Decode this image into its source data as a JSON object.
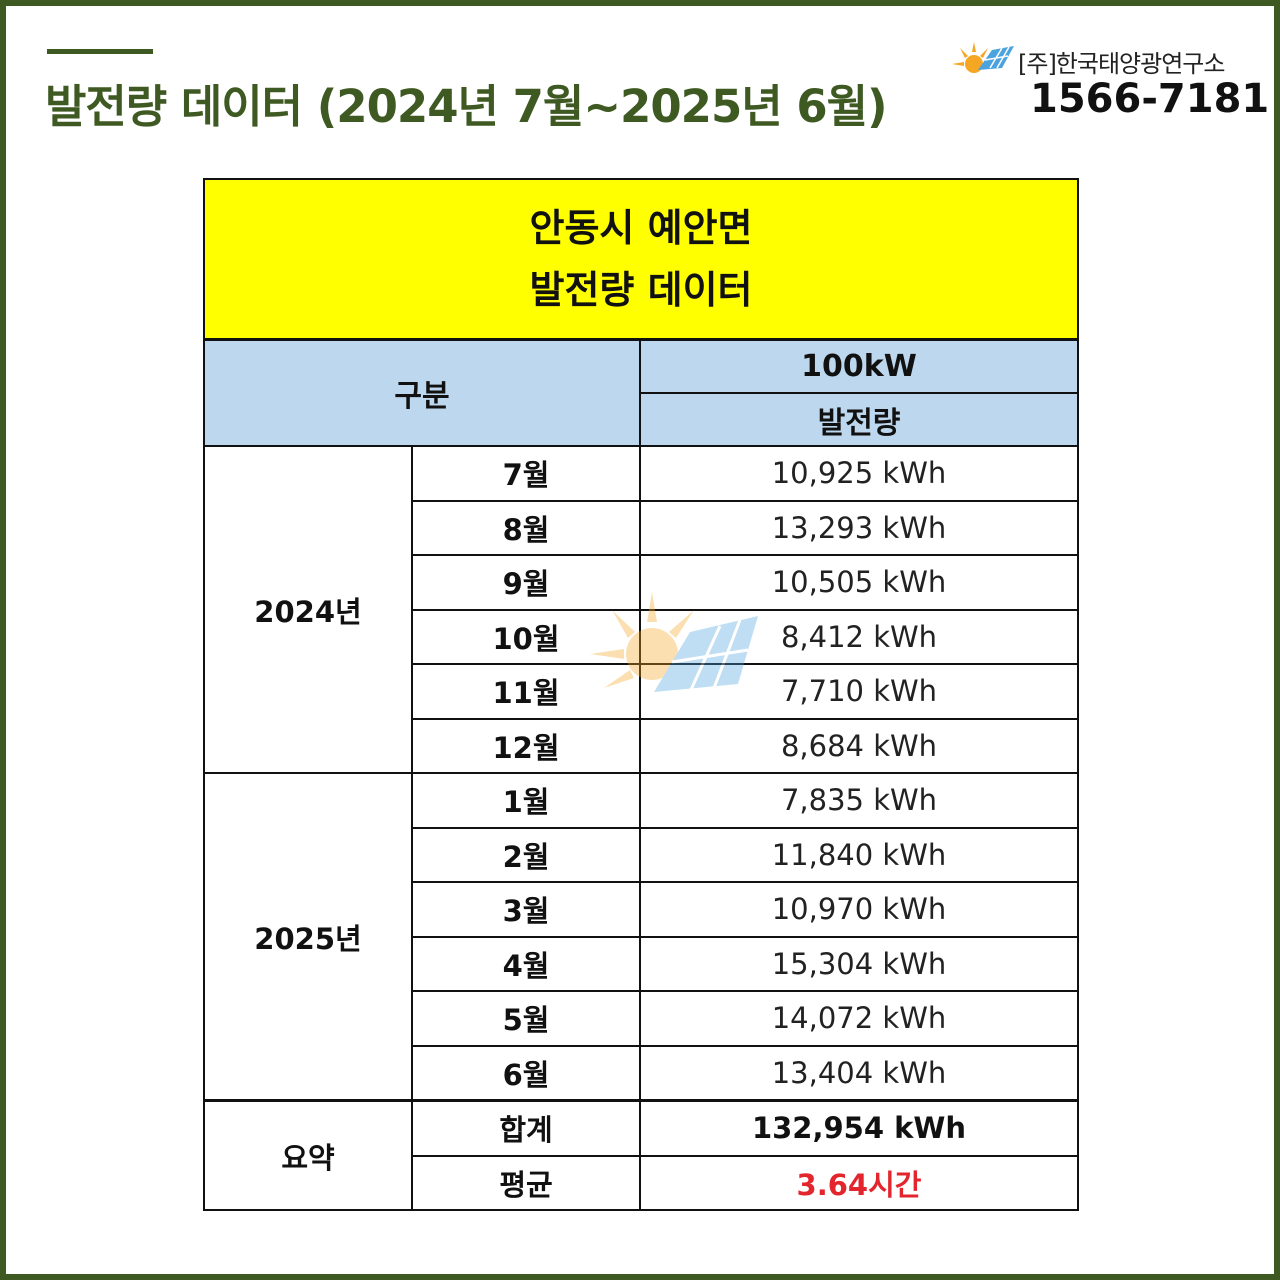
{
  "header": {
    "title": "발전량 데이터 (2024년 7월~2025년 6월)",
    "company": "[주]한국태양광연구소",
    "phone": "1566-7181"
  },
  "table": {
    "title_line1": "안동시 예안면",
    "title_line2": "발전량 데이터",
    "col_category": "구분",
    "col_capacity": "100kW",
    "col_generation": "발전량",
    "groups": [
      {
        "year": "2024년",
        "rows": [
          {
            "month": "7월",
            "value": "10,925 kWh"
          },
          {
            "month": "8월",
            "value": "13,293 kWh"
          },
          {
            "month": "9월",
            "value": "10,505 kWh"
          },
          {
            "month": "10월",
            "value": "8,412 kWh"
          },
          {
            "month": "11월",
            "value": "7,710 kWh"
          },
          {
            "month": "12월",
            "value": "8,684 kWh"
          }
        ]
      },
      {
        "year": "2025년",
        "rows": [
          {
            "month": "1월",
            "value": "7,835 kWh"
          },
          {
            "month": "2월",
            "value": "11,840 kWh"
          },
          {
            "month": "3월",
            "value": "10,970 kWh"
          },
          {
            "month": "4월",
            "value": "15,304 kWh"
          },
          {
            "month": "5월",
            "value": "14,072 kWh"
          },
          {
            "month": "6월",
            "value": "13,404 kWh"
          }
        ]
      }
    ],
    "summary": {
      "label": "요약",
      "total_label": "합계",
      "total_value": "132,954 kWh",
      "avg_label": "평균",
      "avg_value": "3.64시간"
    }
  },
  "colors": {
    "brand_green": "#3e5a22",
    "title_yellow": "#ffff00",
    "header_blue": "#bdd7ee",
    "accent_red": "#e3262d"
  },
  "icons": [
    "sun-solar-panel-logo",
    "sun-solar-panel-watermark"
  ]
}
